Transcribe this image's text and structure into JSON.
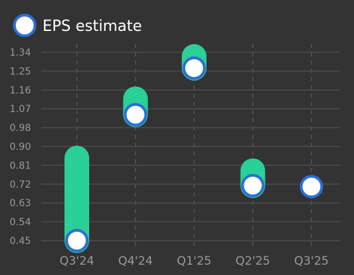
{
  "chart_data": {
    "type": "bar",
    "legend": {
      "label": "EPS estimate",
      "position": "top-left"
    },
    "categories": [
      "Q3'24",
      "Q4'24",
      "Q1'25",
      "Q2'25",
      "Q3'25"
    ],
    "series": [
      {
        "name": "EPS estimate",
        "values": [
          0.45,
          1.045,
          1.265,
          0.71,
          0.705
        ]
      }
    ],
    "range_high": [
      0.84,
      1.12,
      1.32,
      0.78,
      0.705
    ],
    "y_ticks": [
      "0.45",
      "0.54",
      "0.63",
      "0.72",
      "0.81",
      "0.90",
      "0.98",
      "1.07",
      "1.16",
      "1.25",
      "1.34"
    ],
    "ylim": [
      0.45,
      1.34
    ],
    "grid": true,
    "colors": {
      "background": "#333333",
      "bar": "#2bcf98",
      "marker_fill": "#ffffff",
      "marker_stroke": "#2b6fd6",
      "grid": "#4d4d4d",
      "vgrid": "#555555",
      "tick_text": "#9a9a9a",
      "legend_text": "#ffffff"
    }
  }
}
